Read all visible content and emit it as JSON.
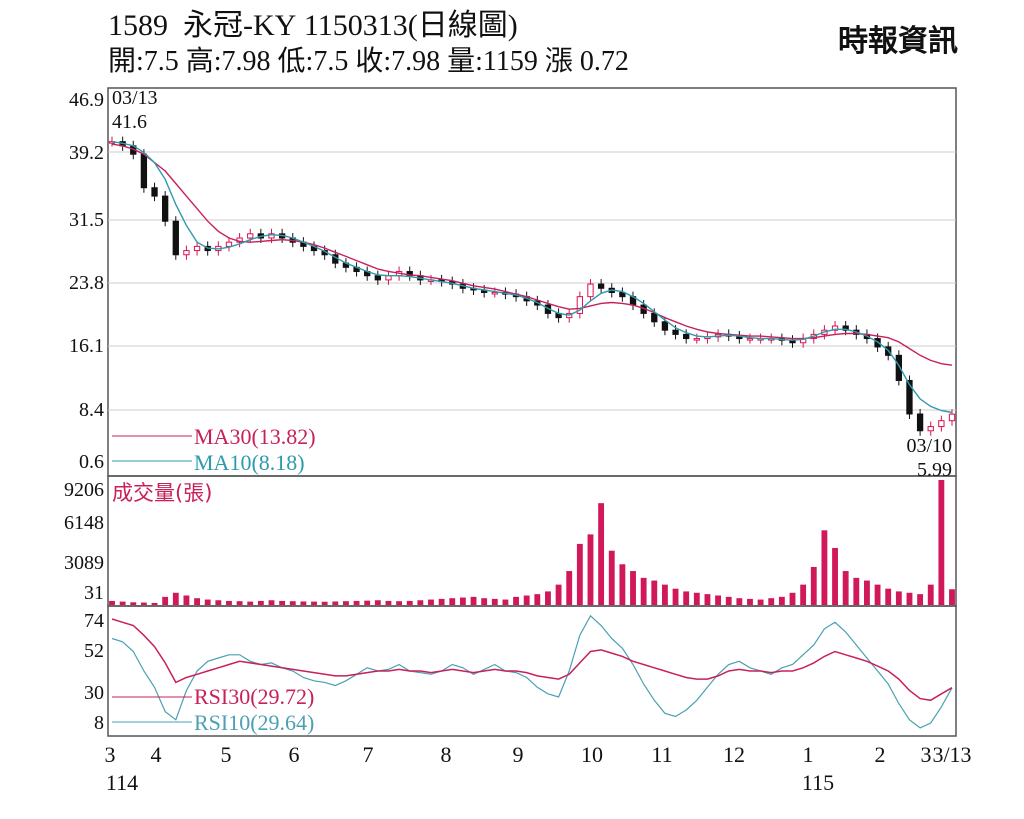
{
  "header": {
    "code": "1589",
    "name": "永冠-KY",
    "date": "1150313(日線圖)",
    "stats": "開:7.5 高:7.98 低:7.5 收:7.98 量:1159 漲 0.72",
    "source": "時報資訊"
  },
  "colors": {
    "ma30": "#c8205a",
    "ma10": "#2e9aae",
    "up": "#d8144c",
    "down": "#111111",
    "volume": "#d0185a",
    "rsi30": "#c8205a",
    "rsi10": "#4aa0b4",
    "grid": "#cccccc"
  },
  "chart_data": [
    {
      "type": "candlestick",
      "panel": "price",
      "y_ticks": [
        "46.9",
        "39.2",
        "31.5",
        "23.8",
        "16.1",
        "8.4",
        "0.6"
      ],
      "ylim": [
        0.6,
        46.9
      ],
      "annotations": [
        {
          "date": "03/13",
          "value": "41.6",
          "label": "high"
        },
        {
          "date": "03/10",
          "value": "5.99",
          "label": "low"
        }
      ],
      "series": [
        {
          "name": "MA30(13.82)",
          "key": "ma30"
        },
        {
          "name": "MA10(8.18)",
          "key": "ma10"
        }
      ],
      "close_approx": [
        40.5,
        40,
        39,
        35,
        34,
        31,
        27,
        27.5,
        28,
        27.5,
        28,
        28.5,
        29,
        29.5,
        29,
        29.5,
        29,
        28.5,
        28,
        27.5,
        27,
        26,
        25.5,
        25,
        24.5,
        24,
        24.5,
        25,
        24.5,
        24,
        24,
        23.8,
        23.5,
        23,
        22.8,
        22.5,
        22.5,
        22.3,
        22,
        21.5,
        21,
        20,
        19.5,
        20,
        22,
        23.5,
        23,
        22.5,
        22,
        21,
        20,
        19,
        18,
        17.5,
        17,
        17,
        17.2,
        17.5,
        17.3,
        17,
        17,
        17,
        17,
        16.8,
        16.5,
        17,
        17.5,
        18,
        18.5,
        18,
        17.5,
        17,
        16,
        15,
        12,
        8,
        6,
        6.5,
        7.2,
        7.98
      ],
      "ma30_approx": [
        40.2,
        40,
        39.6,
        39,
        38,
        37,
        35.5,
        34,
        32.5,
        31,
        29.8,
        29,
        28.6,
        28.5,
        28.6,
        28.7,
        28.8,
        28.7,
        28.5,
        28.2,
        27.8,
        27.3,
        26.8,
        26.3,
        25.8,
        25.3,
        25,
        24.8,
        24.6,
        24.5,
        24.3,
        24.1,
        23.9,
        23.6,
        23.3,
        23.1,
        22.9,
        22.6,
        22.3,
        22,
        21.6,
        21.2,
        20.8,
        20.5,
        20.6,
        20.9,
        21.2,
        21.3,
        21.2,
        21,
        20.6,
        20.1,
        19.5,
        19,
        18.5,
        18.1,
        17.8,
        17.6,
        17.5,
        17.4,
        17.3,
        17.3,
        17.2,
        17.1,
        17,
        17,
        17.1,
        17.3,
        17.5,
        17.6,
        17.6,
        17.5,
        17.3,
        17.1,
        16.6,
        15.8,
        15,
        14.4,
        14,
        13.82
      ],
      "ma10_approx": [
        40.5,
        40.3,
        40,
        39.2,
        38,
        36,
        33,
        30.5,
        28.5,
        27.8,
        27.7,
        27.9,
        28.3,
        28.8,
        29.2,
        29.4,
        29.3,
        29,
        28.5,
        28,
        27.4,
        26.7,
        26,
        25.5,
        25,
        24.6,
        24.5,
        24.5,
        24.4,
        24.2,
        24,
        23.8,
        23.6,
        23.3,
        23,
        22.8,
        22.6,
        22.4,
        22.2,
        21.8,
        21.3,
        20.6,
        20,
        19.8,
        20.4,
        21.5,
        22.4,
        22.8,
        22.6,
        22,
        21.2,
        20.2,
        19.2,
        18.3,
        17.7,
        17.3,
        17.2,
        17.3,
        17.4,
        17.3,
        17.1,
        17,
        17,
        16.9,
        16.8,
        16.9,
        17.3,
        17.8,
        18.1,
        18.1,
        17.8,
        17.3,
        16.6,
        15.6,
        13.8,
        11.5,
        9.8,
        8.9,
        8.4,
        8.18
      ]
    },
    {
      "type": "bar",
      "panel": "volume",
      "title": "成交量(張)",
      "y_ticks": [
        "9206",
        "6148",
        "3089",
        "31"
      ],
      "ylim": [
        31,
        9206
      ],
      "values_approx": [
        300,
        250,
        200,
        180,
        150,
        600,
        900,
        700,
        500,
        400,
        350,
        300,
        280,
        250,
        300,
        350,
        300,
        280,
        260,
        250,
        240,
        260,
        280,
        300,
        320,
        350,
        300,
        280,
        300,
        350,
        400,
        450,
        500,
        550,
        600,
        500,
        450,
        400,
        600,
        700,
        800,
        1000,
        1500,
        2500,
        4500,
        5200,
        7500,
        4000,
        3000,
        2500,
        2000,
        1800,
        1500,
        1200,
        1000,
        900,
        800,
        700,
        600,
        500,
        450,
        400,
        500,
        600,
        900,
        1500,
        2800,
        5500,
        4200,
        2500,
        2000,
        1800,
        1500,
        1200,
        1000,
        900,
        800,
        1500,
        9206,
        1159
      ]
    },
    {
      "type": "line",
      "panel": "rsi",
      "y_ticks": [
        "74",
        "52",
        "30",
        "8"
      ],
      "ylim": [
        0,
        80
      ],
      "series": [
        {
          "name": "RSI30(29.72)",
          "key": "rsi30",
          "values_approx": [
            72,
            70,
            68,
            62,
            55,
            45,
            33,
            36,
            38,
            40,
            42,
            44,
            46,
            45,
            44,
            43,
            42,
            41,
            40,
            39,
            38,
            37,
            37,
            38,
            39,
            40,
            40,
            41,
            40,
            40,
            39,
            40,
            41,
            40,
            39,
            40,
            41,
            40,
            40,
            39,
            37,
            36,
            35,
            38,
            45,
            52,
            53,
            51,
            49,
            46,
            44,
            42,
            40,
            38,
            36,
            35,
            35,
            37,
            40,
            41,
            40,
            40,
            39,
            40,
            40,
            42,
            45,
            49,
            52,
            50,
            48,
            46,
            43,
            40,
            35,
            28,
            23,
            22,
            26,
            29.72
          ]
        },
        {
          "name": "RSI10(29.64)",
          "key": "rsi10",
          "values_approx": [
            60,
            58,
            52,
            40,
            30,
            15,
            10,
            28,
            40,
            46,
            48,
            50,
            50,
            46,
            44,
            45,
            42,
            40,
            36,
            34,
            33,
            31,
            34,
            38,
            42,
            40,
            41,
            44,
            40,
            39,
            38,
            40,
            44,
            42,
            38,
            41,
            44,
            40,
            39,
            36,
            30,
            26,
            24,
            40,
            62,
            74,
            68,
            60,
            54,
            44,
            32,
            22,
            14,
            12,
            16,
            22,
            30,
            38,
            44,
            46,
            42,
            40,
            38,
            42,
            44,
            50,
            56,
            66,
            70,
            64,
            56,
            48,
            40,
            32,
            20,
            10,
            5,
            8,
            18,
            29.64
          ]
        }
      ]
    }
  ],
  "x_axis": {
    "month_labels": [
      "3",
      "4",
      "5",
      "6",
      "7",
      "8",
      "9",
      "10",
      "11",
      "12",
      "1",
      "2",
      "3",
      "3/13"
    ],
    "year_labels": [
      "114",
      "115"
    ]
  }
}
